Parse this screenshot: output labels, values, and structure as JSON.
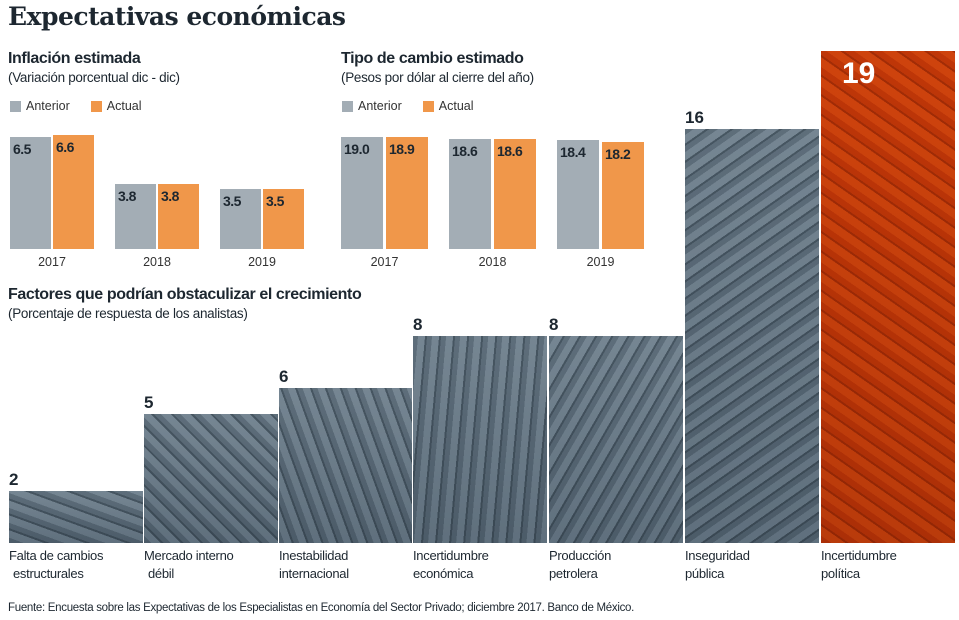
{
  "title": "Expectativas económicas",
  "colors": {
    "anterior": "#a3adb5",
    "actual": "#f0974a",
    "banknote_gray": "#9aa7b0",
    "banknote_orange": "#e07a30"
  },
  "chart_data": [
    {
      "type": "bar",
      "title": "Inflación estimada",
      "subtitle": "(Variación porcentual dic - dic)",
      "categories": [
        "2017",
        "2018",
        "2019"
      ],
      "series": [
        {
          "name": "Anterior",
          "values": [
            6.5,
            3.8,
            3.5
          ]
        },
        {
          "name": "Actual",
          "values": [
            6.6,
            3.8,
            3.5
          ]
        }
      ],
      "legend": "top-left",
      "grid": false
    },
    {
      "type": "bar",
      "title": "Tipo de cambio estimado",
      "subtitle": "(Pesos por dólar al cierre del año)",
      "categories": [
        "2017",
        "2018",
        "2019"
      ],
      "series": [
        {
          "name": "Anterior",
          "values": [
            "19.0",
            "18.6",
            "18.4"
          ]
        },
        {
          "name": "Actual",
          "values": [
            "18.9",
            "18.6",
            "18.2"
          ]
        }
      ],
      "legend": "top-left",
      "grid": false
    },
    {
      "type": "bar",
      "title": "Factores que podrían obstaculizar el crecimiento",
      "subtitle": "(Porcentaje de respuesta de los analistas)",
      "categories": [
        [
          "Falta de cambios",
          "estructurales"
        ],
        [
          "Mercado interno",
          "débil"
        ],
        [
          "Inestabilidad",
          "internacional"
        ],
        [
          "Incertidumbre",
          "económica"
        ],
        [
          "Producción",
          "petrolera"
        ],
        [
          "Inseguridad",
          "pública"
        ],
        [
          "Incertidumbre",
          "política"
        ]
      ],
      "values": [
        2,
        5,
        6,
        8,
        8,
        16,
        19
      ],
      "highlight": "Incertidumbre política",
      "grid": false
    }
  ],
  "source": "Fuente: Encuesta sobre las Expectativas de los Especialistas  en Economía del Sector Privado; diciembre 2017. Banco de México."
}
